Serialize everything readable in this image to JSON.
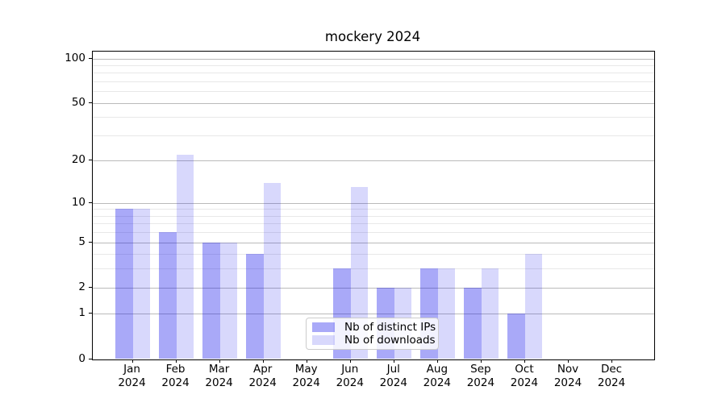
{
  "chart_data": {
    "type": "bar",
    "title": "mockery 2024",
    "categories": [
      "Jan",
      "Feb",
      "Mar",
      "Apr",
      "May",
      "Jun",
      "Jul",
      "Aug",
      "Sep",
      "Oct",
      "Nov",
      "Dec"
    ],
    "year_label": "2024",
    "series": [
      {
        "name": "Nb of distinct IPs",
        "color": "rgba(10,10,235,0.35)",
        "values": [
          9,
          6,
          5,
          4,
          0,
          3,
          2,
          3,
          2,
          1,
          0,
          0
        ]
      },
      {
        "name": "Nb of downloads",
        "color": "rgba(10,10,235,0.16)",
        "values": [
          9,
          22,
          5,
          14,
          0,
          13,
          2,
          3,
          3,
          4,
          0,
          0
        ]
      }
    ],
    "yscale": "log1p",
    "ylim": [
      0,
      112
    ],
    "yticks": [
      100,
      50,
      20,
      10,
      5,
      2,
      1,
      0
    ],
    "yticks_minor": [
      3,
      4,
      6,
      7,
      8,
      9,
      30,
      40,
      60,
      70,
      80,
      90
    ],
    "grid": true,
    "legend_position": "lower-center"
  },
  "colors": {
    "grid_major": "#bababa",
    "grid_minor": "#e8e8e8",
    "spine": "#000000",
    "text": "#000000",
    "legend_border": "#cccccc",
    "legend_bg": "rgba(255,255,255,0.85)"
  }
}
